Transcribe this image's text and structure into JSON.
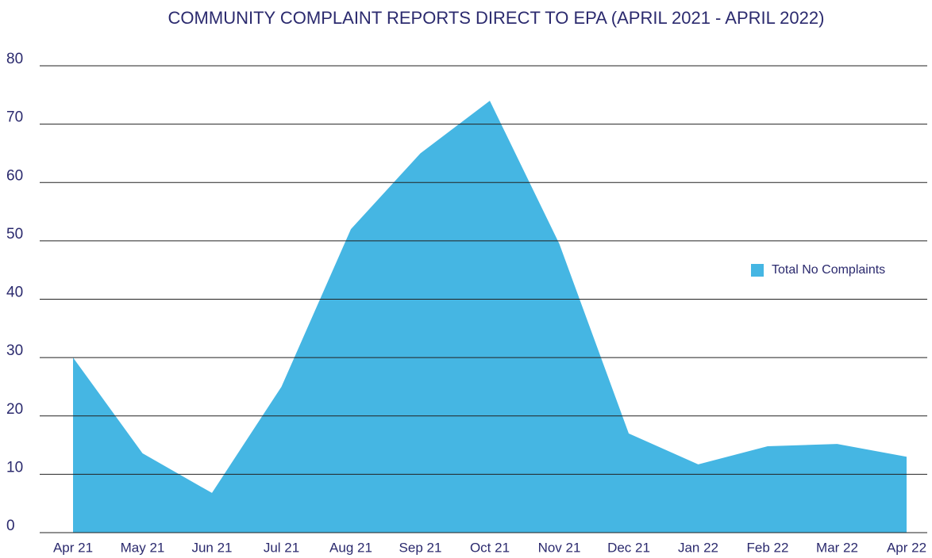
{
  "chart_data": {
    "type": "area",
    "title": "COMMUNITY COMPLAINT REPORTS DIRECT TO EPA (APRIL 2021 - APRIL 2022)",
    "categories": [
      "Apr 21",
      "May 21",
      "Jun 21",
      "Jul 21",
      "Aug 21",
      "Sep 21",
      "Oct 21",
      "Nov 21",
      "Dec 21",
      "Jan 22",
      "Feb 22",
      "Mar 22",
      "Apr 22"
    ],
    "series": [
      {
        "name": "Total No Complaints",
        "color": "#45b6e3",
        "values": [
          30,
          13.6,
          6.8,
          25,
          52,
          65,
          74,
          49.5,
          17,
          11.7,
          14.8,
          15.2,
          13
        ]
      }
    ],
    "ylim": [
      0,
      80
    ],
    "yticks": [
      0,
      10,
      20,
      30,
      40,
      50,
      60,
      70,
      80
    ],
    "grid": true,
    "legend": "right"
  }
}
